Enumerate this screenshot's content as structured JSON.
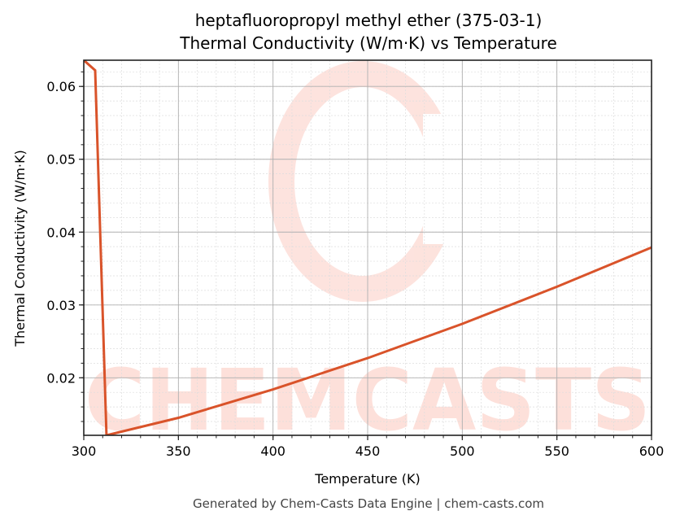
{
  "chart_data": {
    "type": "line",
    "title": "heptafluoropropyl methyl ether (375-03-1)",
    "subtitle": "Thermal Conductivity (W/m·K) vs Temperature",
    "xlabel": "Temperature (K)",
    "ylabel": "Thermal Conductivity (W/m·K)",
    "xlim": [
      300,
      600
    ],
    "ylim": [
      0.0121,
      0.0636
    ],
    "x_ticks": [
      300,
      350,
      400,
      450,
      500,
      550,
      600
    ],
    "x_tick_labels": [
      "300",
      "350",
      "400",
      "450",
      "500",
      "550",
      "600"
    ],
    "y_ticks": [
      0.02,
      0.03,
      0.04,
      0.05,
      0.06
    ],
    "y_tick_labels": [
      "0.02",
      "0.03",
      "0.04",
      "0.05",
      "0.06"
    ],
    "grid": true,
    "legend": null,
    "series": [
      {
        "name": "Thermal Conductivity",
        "color": "#d9532a",
        "x": [
          300,
          306,
          312,
          350,
          400,
          450,
          500,
          550,
          600
        ],
        "values": [
          0.0636,
          0.0622,
          0.0121,
          0.0145,
          0.0184,
          0.0227,
          0.0274,
          0.0325,
          0.0379
        ]
      }
    ]
  },
  "watermark": {
    "text": "CHEMCASTS",
    "color": "#fde0da"
  },
  "footer": "Generated by Chem-Casts Data Engine | chem-casts.com"
}
